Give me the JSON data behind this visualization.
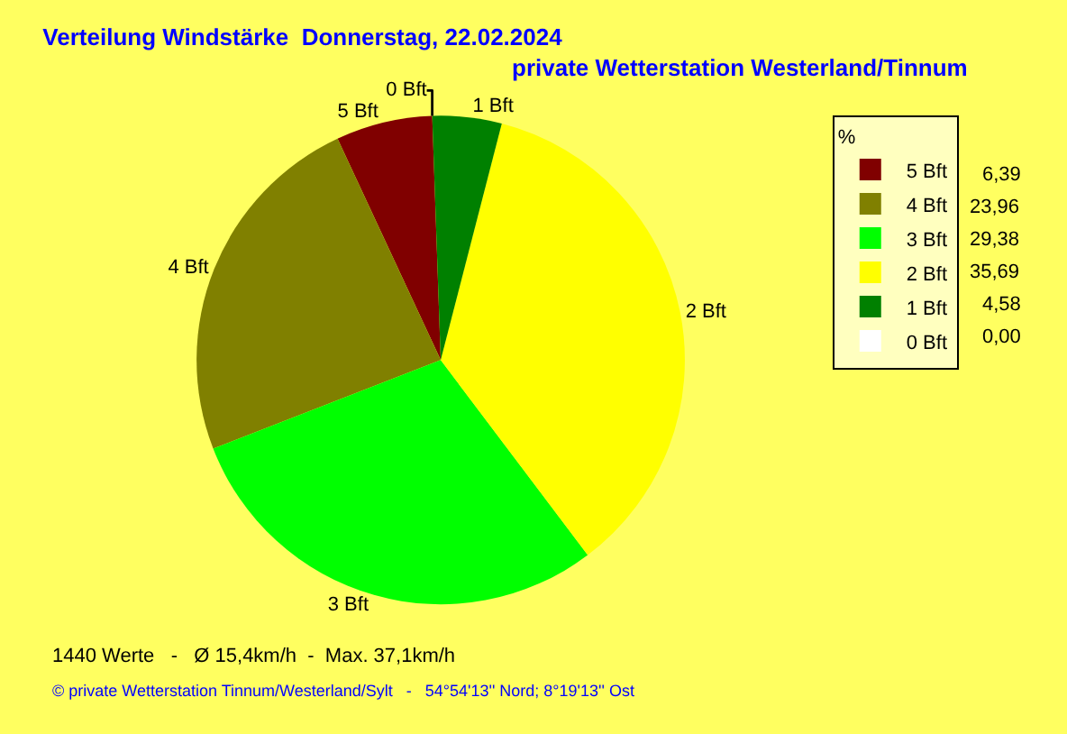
{
  "chart_data": {
    "type": "pie",
    "title": "Verteilung Windstärke  Donnerstag, 22.02.2024",
    "subtitle": "private Wetterstation Westerland/Tinnum",
    "categories": [
      "5 Bft",
      "4 Bft",
      "3 Bft",
      "2 Bft",
      "1 Bft",
      "0 Bft"
    ],
    "values": [
      6.39,
      23.96,
      29.38,
      35.69,
      4.58,
      0.0
    ],
    "value_labels": [
      "6,39",
      "23,96",
      "29,38",
      "35,69",
      "4,58",
      "0,00"
    ],
    "colors": [
      "#800000",
      "#808000",
      "#00ff00",
      "#ffff00",
      "#008000",
      "#ffffff"
    ],
    "legend_title": "%",
    "legend": "top right",
    "annotations": [
      "1440 Werte   -   Ø 15,4km/h  -  Max. 37,1km/h",
      "© private Wetterstation Tinnum/Westerland/Sylt   -   54°54'13'' Nord; 8°19'13'' Ost"
    ]
  }
}
